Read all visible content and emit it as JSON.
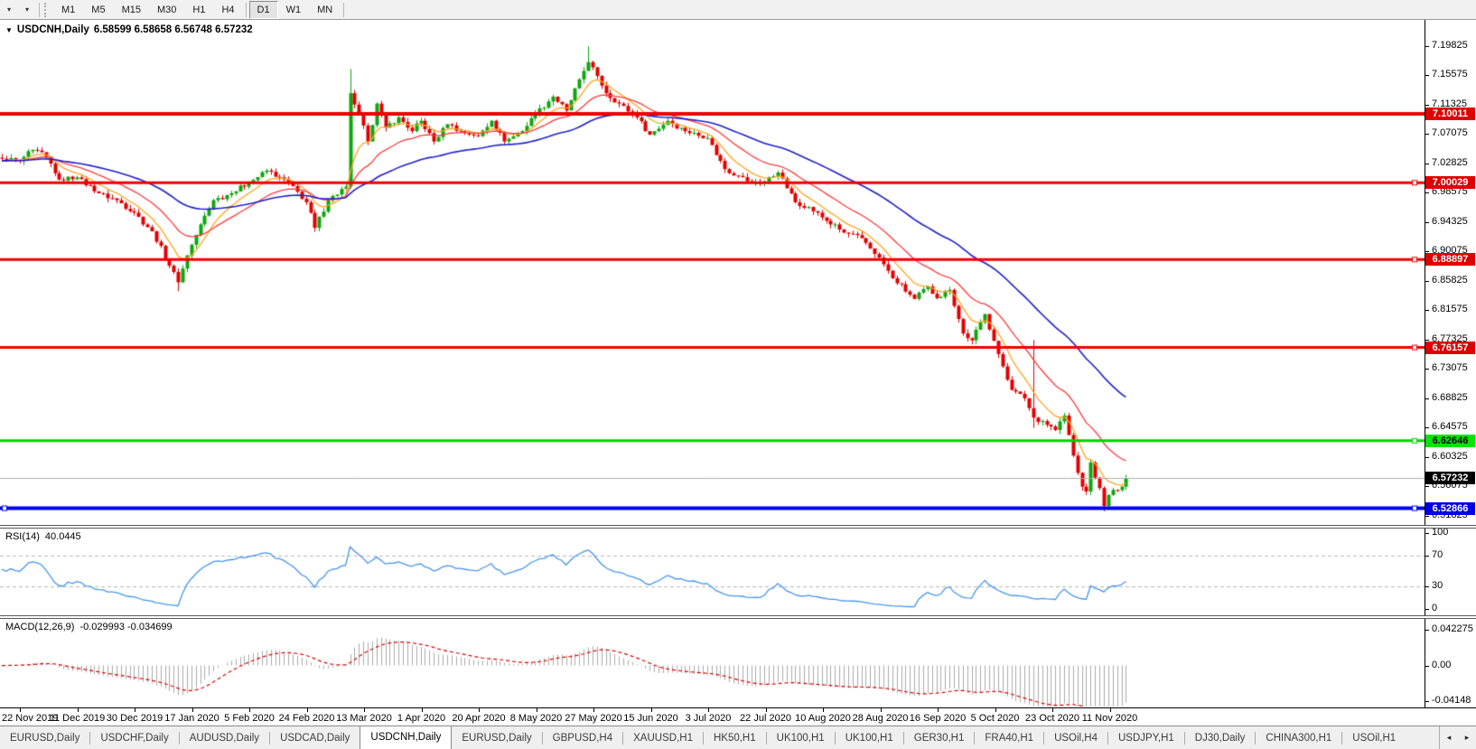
{
  "toolbar": {
    "dropdown_1": "▾",
    "dropdown_2": "▾",
    "timeframes": [
      "M1",
      "M5",
      "M15",
      "M30",
      "H1",
      "H4",
      "D1",
      "W1",
      "MN"
    ],
    "active_timeframe": "D1"
  },
  "chart": {
    "title": "USDCNH,Daily",
    "ohlc": "6.58599 6.58658 6.56748 6.57232",
    "open": "6.58599",
    "high": "6.58658",
    "low": "6.56748",
    "close": "6.57232"
  },
  "price_axis": {
    "ticks": [
      "7.19825",
      "7.15575",
      "7.11325",
      "7.07075",
      "7.02825",
      "6.98575",
      "6.94325",
      "6.90075",
      "6.85825",
      "6.81575",
      "6.77325",
      "6.73075",
      "6.68825",
      "6.64575",
      "6.60325",
      "6.56075",
      "6.51825"
    ]
  },
  "badges": [
    {
      "text": "7.10011",
      "price": 7.10011,
      "bg": "#dd0000",
      "fg": "#ffffff"
    },
    {
      "text": "7.00029",
      "price": 7.00029,
      "bg": "#dd0000",
      "fg": "#ffffff"
    },
    {
      "text": "6.88897",
      "price": 6.88897,
      "bg": "#dd0000",
      "fg": "#ffffff"
    },
    {
      "text": "6.76157",
      "price": 6.76157,
      "bg": "#dd0000",
      "fg": "#ffffff"
    },
    {
      "text": "6.62646",
      "price": 6.62646,
      "bg": "#00e400",
      "fg": "#000000"
    },
    {
      "text": "6.57232",
      "price": 6.57232,
      "bg": "#000000",
      "fg": "#ffffff"
    },
    {
      "text": "6.52866",
      "price": 6.52866,
      "bg": "#0000e0",
      "fg": "#ffffff"
    }
  ],
  "rsi": {
    "label": "RSI(14)",
    "value": "40.0445",
    "scale": [
      {
        "text": "100",
        "v": 100
      },
      {
        "text": "70",
        "v": 70
      },
      {
        "text": "30",
        "v": 30
      },
      {
        "text": "0",
        "v": 0
      }
    ],
    "dashed_levels": [
      70,
      30
    ],
    "line_color": "#4696ec"
  },
  "macd": {
    "label": "MACD(12,26,9)",
    "values": "-0.029993 -0.034699",
    "scale": [
      {
        "text": "0.042275",
        "v": 0.042275
      },
      {
        "text": "0.00",
        "v": 0
      },
      {
        "text": "-0.04148",
        "v": -0.04148
      }
    ],
    "histogram_color": "#ababab",
    "signal_color": "#e00000"
  },
  "date_axis": {
    "labels": [
      "22 Nov 2019",
      "11 Dec 2019",
      "30 Dec 2019",
      "17 Jan 2020",
      "5 Feb 2020",
      "24 Feb 2020",
      "13 Mar 2020",
      "1 Apr 2020",
      "20 Apr 2020",
      "8 May 2020",
      "27 May 2020",
      "15 Jun 2020",
      "3 Jul 2020",
      "22 Jul 2020",
      "10 Aug 2020",
      "28 Aug 2020",
      "16 Sep 2020",
      "5 Oct 2020",
      "23 Oct 2020",
      "11 Nov 2020"
    ]
  },
  "tabs": {
    "items": [
      "EURUSD,Daily",
      "USDCHF,Daily",
      "AUDUSD,Daily",
      "USDCAD,Daily",
      "USDCNH,Daily",
      "EURUSD,Daily",
      "GBPUSD,H4",
      "XAUUSD,H1",
      "HK50,H1",
      "UK100,H1",
      "UK100,H1",
      "GER30,H1",
      "FRA40,H1",
      "USOil,H4",
      "USDJPY,H1",
      "DJ30,Daily",
      "CHINA300,H1",
      "USOil,H1"
    ],
    "active_index": 4,
    "scroll_left": "◂",
    "scroll_right": "▸"
  },
  "chart_data": {
    "type": "candlestick",
    "symbol": "USDCNH",
    "timeframe": "Daily",
    "bars": 256,
    "pad": 30,
    "y_range": {
      "top": 7.2287,
      "bottom": 6.497
    },
    "price_tick_step": 0.0425,
    "close_anchors": [
      [
        0,
        7.035
      ],
      [
        4,
        7.032
      ],
      [
        7,
        7.048
      ],
      [
        10,
        7.038
      ],
      [
        13,
        7.005
      ],
      [
        17,
        7.008
      ],
      [
        22,
        6.985
      ],
      [
        26,
        6.975
      ],
      [
        30,
        6.957
      ],
      [
        34,
        6.93
      ],
      [
        38,
        6.88
      ],
      [
        40,
        6.856
      ],
      [
        42,
        6.895
      ],
      [
        45,
        6.94
      ],
      [
        48,
        6.975
      ],
      [
        52,
        6.985
      ],
      [
        56,
        7.0
      ],
      [
        60,
        7.018
      ],
      [
        63,
        7.008
      ],
      [
        65,
        7.0
      ],
      [
        69,
        6.972
      ],
      [
        71,
        6.935
      ],
      [
        74,
        6.975
      ],
      [
        78,
        6.995
      ],
      [
        79,
        7.13
      ],
      [
        81,
        7.1
      ],
      [
        83,
        7.06
      ],
      [
        85,
        7.115
      ],
      [
        87,
        7.08
      ],
      [
        90,
        7.095
      ],
      [
        93,
        7.075
      ],
      [
        95,
        7.09
      ],
      [
        98,
        7.06
      ],
      [
        101,
        7.085
      ],
      [
        104,
        7.075
      ],
      [
        108,
        7.068
      ],
      [
        111,
        7.09
      ],
      [
        114,
        7.06
      ],
      [
        118,
        7.075
      ],
      [
        121,
        7.1
      ],
      [
        125,
        7.125
      ],
      [
        128,
        7.105
      ],
      [
        131,
        7.15
      ],
      [
        133,
        7.175
      ],
      [
        135,
        7.155
      ],
      [
        137,
        7.13
      ],
      [
        140,
        7.115
      ],
      [
        144,
        7.095
      ],
      [
        147,
        7.07
      ],
      [
        151,
        7.09
      ],
      [
        155,
        7.075
      ],
      [
        160,
        7.065
      ],
      [
        164,
        7.02
      ],
      [
        167,
        7.01
      ],
      [
        170,
        7.0
      ],
      [
        173,
        7.002
      ],
      [
        176,
        7.015
      ],
      [
        180,
        6.972
      ],
      [
        183,
        6.965
      ],
      [
        186,
        6.95
      ],
      [
        191,
        6.928
      ],
      [
        195,
        6.92
      ],
      [
        199,
        6.892
      ],
      [
        202,
        6.862
      ],
      [
        207,
        6.832
      ],
      [
        210,
        6.85
      ],
      [
        212,
        6.833
      ],
      [
        215,
        6.845
      ],
      [
        218,
        6.782
      ],
      [
        220,
        6.772
      ],
      [
        223,
        6.81
      ],
      [
        226,
        6.752
      ],
      [
        229,
        6.7
      ],
      [
        232,
        6.688
      ],
      [
        234,
        6.66
      ],
      [
        236,
        6.655
      ],
      [
        239,
        6.642
      ],
      [
        241,
        6.663
      ],
      [
        243,
        6.605
      ],
      [
        245,
        6.56
      ],
      [
        246,
        6.553
      ],
      [
        247,
        6.595
      ],
      [
        249,
        6.558
      ],
      [
        250,
        6.532
      ],
      [
        251,
        6.548
      ],
      [
        253,
        6.555
      ],
      [
        255,
        6.572
      ]
    ],
    "wick_overrides": {
      "40": {
        "low": 6.843
      },
      "79": {
        "high": 7.165
      },
      "133": {
        "high": 7.198
      },
      "234": {
        "high": 6.7722,
        "low": 6.645
      },
      "250": {
        "low": 6.5243
      }
    },
    "levels": [
      {
        "price": 7.10011,
        "color": "#ee0000",
        "width": 4,
        "handle": false
      },
      {
        "price": 7.00029,
        "color": "#ee0000",
        "width": 3,
        "handle": true
      },
      {
        "price": 6.88897,
        "color": "#ee0000",
        "width": 3,
        "handle": true
      },
      {
        "price": 6.76157,
        "color": "#ee0000",
        "width": 3,
        "handle": true
      },
      {
        "price": 6.62646,
        "color": "#00d200",
        "width": 3,
        "handle": true
      },
      {
        "price": 6.52866,
        "color": "#0000ee",
        "width": 4,
        "handle": true,
        "left_handle": true
      }
    ],
    "current_price": {
      "price": 6.57232,
      "color": "#b0b0b0"
    },
    "candle_up_color": "#0ea60e",
    "candle_down_color": "#e30000",
    "moving_averages": [
      {
        "period": 8,
        "color": "#ffa520"
      },
      {
        "period": 20,
        "color": "#ff3b3b"
      },
      {
        "period": 50,
        "color": "#2020cc"
      }
    ],
    "rsi_period": 14,
    "macd_params": [
      12,
      26,
      9
    ]
  }
}
